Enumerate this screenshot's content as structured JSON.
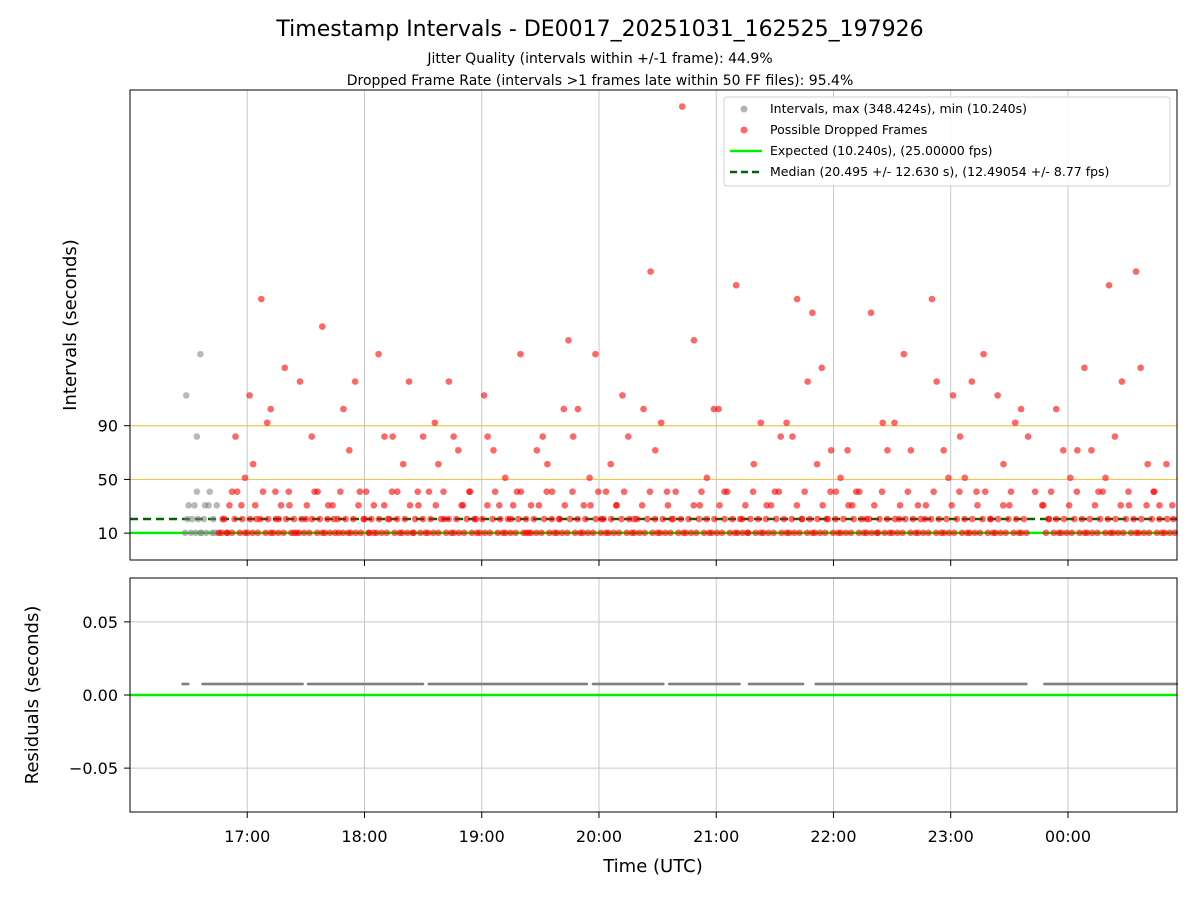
{
  "title": "Timestamp Intervals - DE0017_20251031_162525_197926",
  "subtitle_jitter": "Jitter Quality (intervals within +/-1 frame): 44.9%",
  "subtitle_dropped": "Dropped Frame Rate (intervals >1 frames late within 50 FF files): 95.4%",
  "colors": {
    "intervals": "#808080",
    "dropped": "#ff0000",
    "expected": "#00ee00",
    "median": "#006400",
    "threshold": "#f0c850",
    "grid": "#c8c8c8"
  },
  "chart_data": [
    {
      "type": "scatter",
      "ylabel": "Intervals (seconds)",
      "xlabel": "",
      "x_range_hours": [
        16.0,
        24.93
      ],
      "ylim": [
        -10.0,
        340.0
      ],
      "ytick_values": [
        10,
        50,
        90
      ],
      "ytick_labels": [
        "10",
        "50",
        "90"
      ],
      "xtick_values": [
        17,
        18,
        19,
        20,
        21,
        22,
        23,
        24
      ],
      "threshold_lines": [
        50,
        90
      ],
      "expected_interval": 10.24,
      "median_interval": 20.495,
      "legend": {
        "position": "upper right",
        "intervals": "Intervals, max (348.424s), min (10.240s)",
        "dropped": "Possible Dropped Frames",
        "expected": "Expected (10.240s), (25.00000 fps)",
        "median": "Median (20.495 +/- 12.630 s), (12.49054 +/- 8.77 fps)"
      },
      "series_intervals_gray": [
        [
          16.47,
          10.24
        ],
        [
          16.49,
          20.5
        ],
        [
          16.5,
          30.7
        ],
        [
          16.52,
          10.24
        ],
        [
          16.53,
          20.5
        ],
        [
          16.55,
          30.7
        ],
        [
          16.56,
          10.24
        ],
        [
          16.57,
          40.9
        ],
        [
          16.58,
          20.5
        ],
        [
          16.6,
          10.24
        ],
        [
          16.61,
          10.24
        ],
        [
          16.63,
          20.5
        ],
        [
          16.64,
          30.7
        ],
        [
          16.65,
          10.24
        ],
        [
          16.67,
          30.7
        ],
        [
          16.68,
          40.9
        ],
        [
          16.7,
          10.24
        ],
        [
          16.71,
          20.5
        ],
        [
          16.72,
          10.24
        ],
        [
          16.74,
          30.7
        ],
        [
          16.75,
          10.24
        ],
        [
          16.48,
          112.6
        ],
        [
          16.57,
          81.9
        ],
        [
          16.6,
          143.3
        ]
      ],
      "series_dropped_red": [
        [
          16.79,
          20.5
        ],
        [
          16.83,
          10.24
        ],
        [
          16.87,
          40.9
        ],
        [
          16.9,
          81.9
        ],
        [
          16.95,
          30.7
        ],
        [
          16.98,
          51.2
        ],
        [
          17.02,
          112.6
        ],
        [
          17.05,
          61.4
        ],
        [
          17.08,
          20.5
        ],
        [
          17.12,
          184.3
        ],
        [
          17.17,
          92.2
        ],
        [
          17.2,
          102.4
        ],
        [
          17.24,
          40.9
        ],
        [
          17.27,
          20.5
        ],
        [
          17.32,
          133.1
        ],
        [
          17.36,
          30.7
        ],
        [
          17.4,
          10.24
        ],
        [
          17.45,
          122.9
        ],
        [
          17.5,
          20.5
        ],
        [
          17.55,
          81.9
        ],
        [
          17.6,
          40.9
        ],
        [
          17.64,
          163.8
        ],
        [
          17.69,
          30.7
        ],
        [
          17.74,
          20.5
        ],
        [
          17.78,
          10.24
        ],
        [
          17.82,
          102.4
        ],
        [
          17.87,
          71.7
        ],
        [
          17.92,
          122.9
        ],
        [
          17.96,
          40.9
        ],
        [
          18.0,
          20.5
        ],
        [
          18.04,
          10.24
        ],
        [
          18.08,
          30.7
        ],
        [
          18.12,
          143.3
        ],
        [
          18.17,
          81.9
        ],
        [
          18.2,
          20.5
        ],
        [
          18.24,
          81.9
        ],
        [
          18.28,
          40.9
        ],
        [
          18.33,
          61.4
        ],
        [
          18.38,
          122.9
        ],
        [
          18.42,
          10.24
        ],
        [
          18.46,
          30.7
        ],
        [
          18.5,
          81.9
        ],
        [
          18.55,
          40.9
        ],
        [
          18.6,
          92.2
        ],
        [
          18.63,
          61.4
        ],
        [
          18.68,
          20.5
        ],
        [
          18.72,
          122.9
        ],
        [
          18.76,
          81.9
        ],
        [
          18.8,
          71.7
        ],
        [
          18.84,
          30.7
        ],
        [
          18.9,
          40.9
        ],
        [
          18.95,
          20.5
        ],
        [
          19.02,
          112.6
        ],
        [
          19.05,
          81.9
        ],
        [
          19.1,
          71.7
        ],
        [
          19.15,
          30.7
        ],
        [
          19.2,
          51.2
        ],
        [
          19.25,
          20.5
        ],
        [
          19.3,
          40.9
        ],
        [
          19.33,
          143.3
        ],
        [
          19.38,
          10.24
        ],
        [
          19.42,
          30.7
        ],
        [
          19.47,
          71.7
        ],
        [
          19.52,
          81.9
        ],
        [
          19.56,
          61.4
        ],
        [
          19.6,
          40.9
        ],
        [
          19.66,
          20.5
        ],
        [
          19.7,
          102.4
        ],
        [
          19.74,
          153.6
        ],
        [
          19.78,
          81.9
        ],
        [
          19.82,
          102.4
        ],
        [
          19.87,
          30.7
        ],
        [
          19.92,
          51.2
        ],
        [
          19.97,
          143.3
        ],
        [
          20.02,
          20.5
        ],
        [
          20.06,
          40.9
        ],
        [
          20.1,
          61.4
        ],
        [
          20.15,
          30.7
        ],
        [
          20.2,
          112.6
        ],
        [
          20.25,
          81.9
        ],
        [
          20.3,
          20.5
        ],
        [
          20.38,
          102.4
        ],
        [
          20.44,
          204.8
        ],
        [
          20.48,
          71.7
        ],
        [
          20.53,
          92.2
        ],
        [
          20.58,
          40.9
        ],
        [
          20.62,
          20.5
        ],
        [
          20.71,
          327.7
        ],
        [
          20.81,
          153.6
        ],
        [
          20.86,
          30.7
        ],
        [
          20.92,
          51.2
        ],
        [
          20.98,
          102.4
        ],
        [
          21.02,
          102.4
        ],
        [
          21.07,
          40.9
        ],
        [
          21.17,
          194.6
        ],
        [
          21.22,
          20.5
        ],
        [
          21.27,
          10.24
        ],
        [
          21.32,
          61.4
        ],
        [
          21.38,
          92.2
        ],
        [
          21.43,
          30.7
        ],
        [
          21.5,
          40.9
        ],
        [
          21.55,
          81.9
        ],
        [
          21.6,
          92.2
        ],
        [
          21.65,
          81.9
        ],
        [
          21.69,
          184.3
        ],
        [
          21.73,
          20.5
        ],
        [
          21.78,
          122.9
        ],
        [
          21.82,
          174.1
        ],
        [
          21.86,
          61.4
        ],
        [
          21.9,
          133.1
        ],
        [
          21.94,
          20.5
        ],
        [
          21.98,
          71.7
        ],
        [
          22.02,
          40.9
        ],
        [
          22.06,
          51.2
        ],
        [
          22.12,
          71.7
        ],
        [
          22.16,
          30.7
        ],
        [
          22.22,
          40.9
        ],
        [
          22.28,
          20.5
        ],
        [
          22.32,
          174.1
        ],
        [
          22.38,
          10.24
        ],
        [
          22.42,
          92.2
        ],
        [
          22.46,
          71.7
        ],
        [
          22.52,
          92.2
        ],
        [
          22.56,
          20.5
        ],
        [
          22.6,
          143.3
        ],
        [
          22.66,
          71.7
        ],
        [
          22.72,
          30.7
        ],
        [
          22.78,
          20.5
        ],
        [
          22.84,
          184.3
        ],
        [
          22.88,
          122.9
        ],
        [
          22.94,
          71.7
        ],
        [
          22.98,
          51.2
        ],
        [
          23.02,
          112.6
        ],
        [
          23.08,
          81.9
        ],
        [
          23.12,
          51.2
        ],
        [
          23.18,
          122.9
        ],
        [
          23.22,
          40.9
        ],
        [
          23.28,
          143.3
        ],
        [
          23.34,
          20.5
        ],
        [
          23.4,
          112.6
        ],
        [
          23.45,
          61.4
        ],
        [
          23.5,
          30.7
        ],
        [
          23.55,
          92.2
        ],
        [
          23.6,
          102.4
        ],
        [
          23.66,
          81.9
        ],
        [
          23.72,
          40.9
        ],
        [
          23.78,
          30.7
        ],
        [
          23.84,
          20.5
        ],
        [
          23.9,
          102.4
        ],
        [
          23.96,
          71.7
        ],
        [
          24.02,
          51.2
        ],
        [
          24.08,
          71.7
        ],
        [
          24.14,
          133.1
        ],
        [
          24.2,
          71.7
        ],
        [
          24.26,
          40.9
        ],
        [
          24.32,
          51.2
        ],
        [
          24.35,
          194.6
        ],
        [
          24.4,
          81.9
        ],
        [
          24.46,
          122.9
        ],
        [
          24.52,
          30.7
        ],
        [
          24.58,
          204.8
        ],
        [
          24.62,
          133.1
        ],
        [
          24.68,
          61.4
        ],
        [
          24.73,
          40.9
        ],
        [
          24.78,
          30.7
        ],
        [
          24.84,
          61.4
        ],
        [
          24.9,
          20.5
        ]
      ],
      "series_dropped_dense": {
        "x_ranges": [
          [
            16.76,
            23.66
          ],
          [
            23.79,
            24.93
          ]
        ],
        "step": 0.022,
        "levels": [
          10.24,
          10.24,
          20.5,
          10.24,
          30.7,
          10.24,
          20.5,
          40.9,
          10.24,
          20.5
        ]
      }
    },
    {
      "type": "scatter",
      "ylabel": "Residuals (seconds)",
      "xlabel": "Time (UTC)",
      "ylim": [
        -0.08,
        0.08
      ],
      "ytick_values": [
        0.05,
        0.0,
        -0.05
      ],
      "ytick_labels": [
        "0.05",
        "0.00",
        "−0.05"
      ],
      "xtick_values": [
        17,
        18,
        19,
        20,
        21,
        22,
        23,
        24
      ],
      "xtick_labels": [
        "17:00",
        "18:00",
        "19:00",
        "20:00",
        "21:00",
        "22:00",
        "23:00",
        "00:00"
      ],
      "zero_line": 0.0,
      "residual_value": 0.0075,
      "residual_x_ranges": [
        [
          16.45,
          16.5
        ],
        [
          16.62,
          17.48
        ],
        [
          17.52,
          18.5
        ],
        [
          18.55,
          19.9
        ],
        [
          19.95,
          20.55
        ],
        [
          20.6,
          21.2
        ],
        [
          21.28,
          21.75
        ],
        [
          21.85,
          23.65
        ],
        [
          23.8,
          24.93
        ]
      ]
    }
  ]
}
